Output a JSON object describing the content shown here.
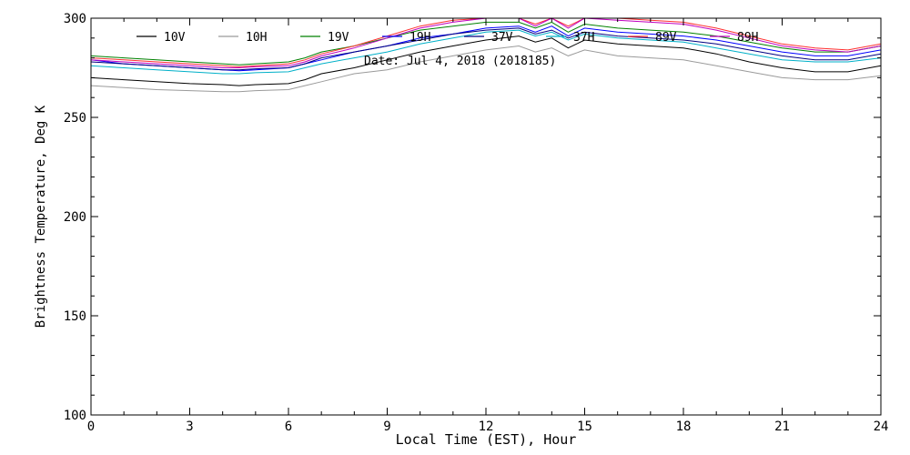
{
  "chart_data": {
    "type": "line",
    "title": "Date: Jul  4, 2018 (2018185)",
    "xlabel": "Local Time (EST), Hour",
    "ylabel": "Brightness Temperature, Deg K",
    "xlim": [
      0,
      24
    ],
    "ylim": [
      100,
      300
    ],
    "xticks": [
      0,
      3,
      6,
      9,
      12,
      15,
      18,
      21,
      24
    ],
    "yticks": [
      100,
      150,
      200,
      250,
      300
    ],
    "grid": false,
    "legend_position": "top",
    "x": [
      0,
      1,
      2,
      3,
      4,
      4.5,
      5,
      6,
      6.5,
      7,
      8,
      9,
      10,
      11,
      12,
      13,
      13.5,
      14,
      14.5,
      15,
      16,
      17,
      18,
      19,
      20,
      21,
      22,
      23,
      24
    ],
    "series": [
      {
        "name": "10V",
        "color": "#000000",
        "values": [
          270,
          269,
          268,
          267,
          266.5,
          266,
          266.5,
          267,
          269,
          272,
          275,
          279,
          283,
          286,
          289,
          291,
          288,
          290,
          285,
          289,
          287,
          286,
          285,
          282,
          278,
          275,
          273,
          273,
          276
        ]
      },
      {
        "name": "10H",
        "color": "#9a9a9a",
        "values": [
          266,
          265,
          264,
          263.5,
          263,
          263,
          263.5,
          264,
          266,
          268,
          272,
          274,
          278,
          281,
          284,
          286,
          283,
          285,
          281,
          284,
          281,
          280,
          279,
          276,
          273,
          270,
          269,
          269,
          271
        ]
      },
      {
        "name": "19V",
        "color": "#008000",
        "values": [
          281,
          280,
          279,
          278,
          277,
          276.5,
          277,
          278,
          280,
          283,
          286,
          290,
          294,
          296,
          298,
          298,
          295,
          298,
          293,
          297,
          295,
          294,
          293,
          291,
          288,
          285,
          283,
          283,
          286
        ]
      },
      {
        "name": "19H",
        "color": "#0000ff",
        "values": [
          279,
          277,
          276,
          275,
          274,
          273.5,
          274,
          275,
          277,
          279,
          283,
          286,
          290,
          292,
          295,
          296,
          293,
          296,
          291,
          295,
          293,
          292,
          291,
          289,
          286,
          283,
          281,
          281,
          284
        ]
      },
      {
        "name": "37V",
        "color": "#000080",
        "values": [
          278,
          277,
          276,
          275,
          274,
          274,
          274.5,
          275,
          277,
          280,
          283,
          286,
          289,
          292,
          294,
          295,
          292,
          294,
          290,
          293,
          291,
          290,
          289,
          287,
          284,
          281,
          279,
          279,
          282
        ]
      },
      {
        "name": "37H",
        "color": "#00b0c8",
        "values": [
          276,
          275,
          274,
          273,
          272,
          272,
          272.5,
          273,
          275,
          277,
          280,
          283,
          287,
          290,
          293,
          294,
          291,
          293,
          289,
          292,
          290,
          289,
          288,
          285,
          282,
          279,
          278,
          278,
          280
        ]
      },
      {
        "name": "89V",
        "color": "#ff3030",
        "values": [
          280,
          279,
          278,
          277,
          276,
          275.5,
          276,
          277,
          279,
          282,
          286,
          291,
          296,
          299,
          300,
          300,
          297,
          300,
          296,
          300,
          300,
          299,
          298,
          295,
          291,
          287,
          285,
          284,
          287
        ]
      },
      {
        "name": "89H",
        "color": "#c000c0",
        "values": [
          279,
          278,
          277,
          276,
          275,
          275,
          275.5,
          276,
          278,
          281,
          285,
          290,
          295,
          298,
          300,
          300,
          296,
          300,
          295,
          300,
          299,
          298,
          297,
          294,
          290,
          286,
          284,
          283,
          286
        ]
      }
    ]
  }
}
